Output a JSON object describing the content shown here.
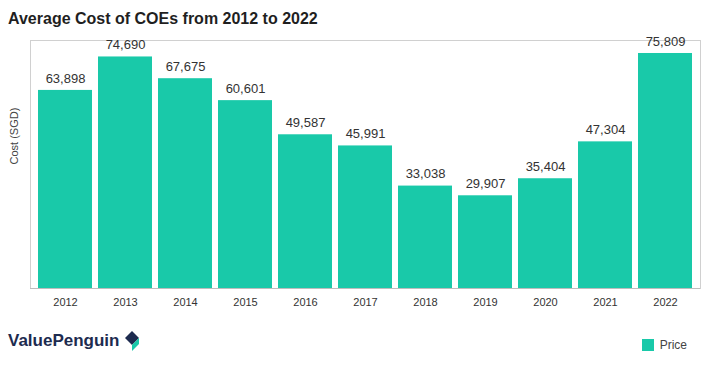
{
  "chart_data": {
    "type": "bar",
    "title": "Average Cost of COEs from 2012 to 2022",
    "y_label": "Cost (SGD)",
    "categories": [
      "2012",
      "2013",
      "2014",
      "2015",
      "2016",
      "2017",
      "2018",
      "2019",
      "2020",
      "2021",
      "2022"
    ],
    "series": [
      {
        "name": "Price",
        "color": "#19c9a9",
        "values": [
          63898,
          74690,
          67675,
          60601,
          49587,
          45991,
          33038,
          29907,
          35404,
          47304,
          75809
        ],
        "value_labels": [
          "63,898",
          "74,690",
          "67,675",
          "60,601",
          "49,587",
          "45,991",
          "33,038",
          "29,907",
          "35,404",
          "47,304",
          "75,809"
        ]
      }
    ],
    "ylim": [
      0,
      80000
    ],
    "yticks": [],
    "tick_labels": "x",
    "data_labels": true,
    "legend": "bottom-right",
    "grid": false,
    "annotations": [
      "ValuePenguin"
    ]
  }
}
